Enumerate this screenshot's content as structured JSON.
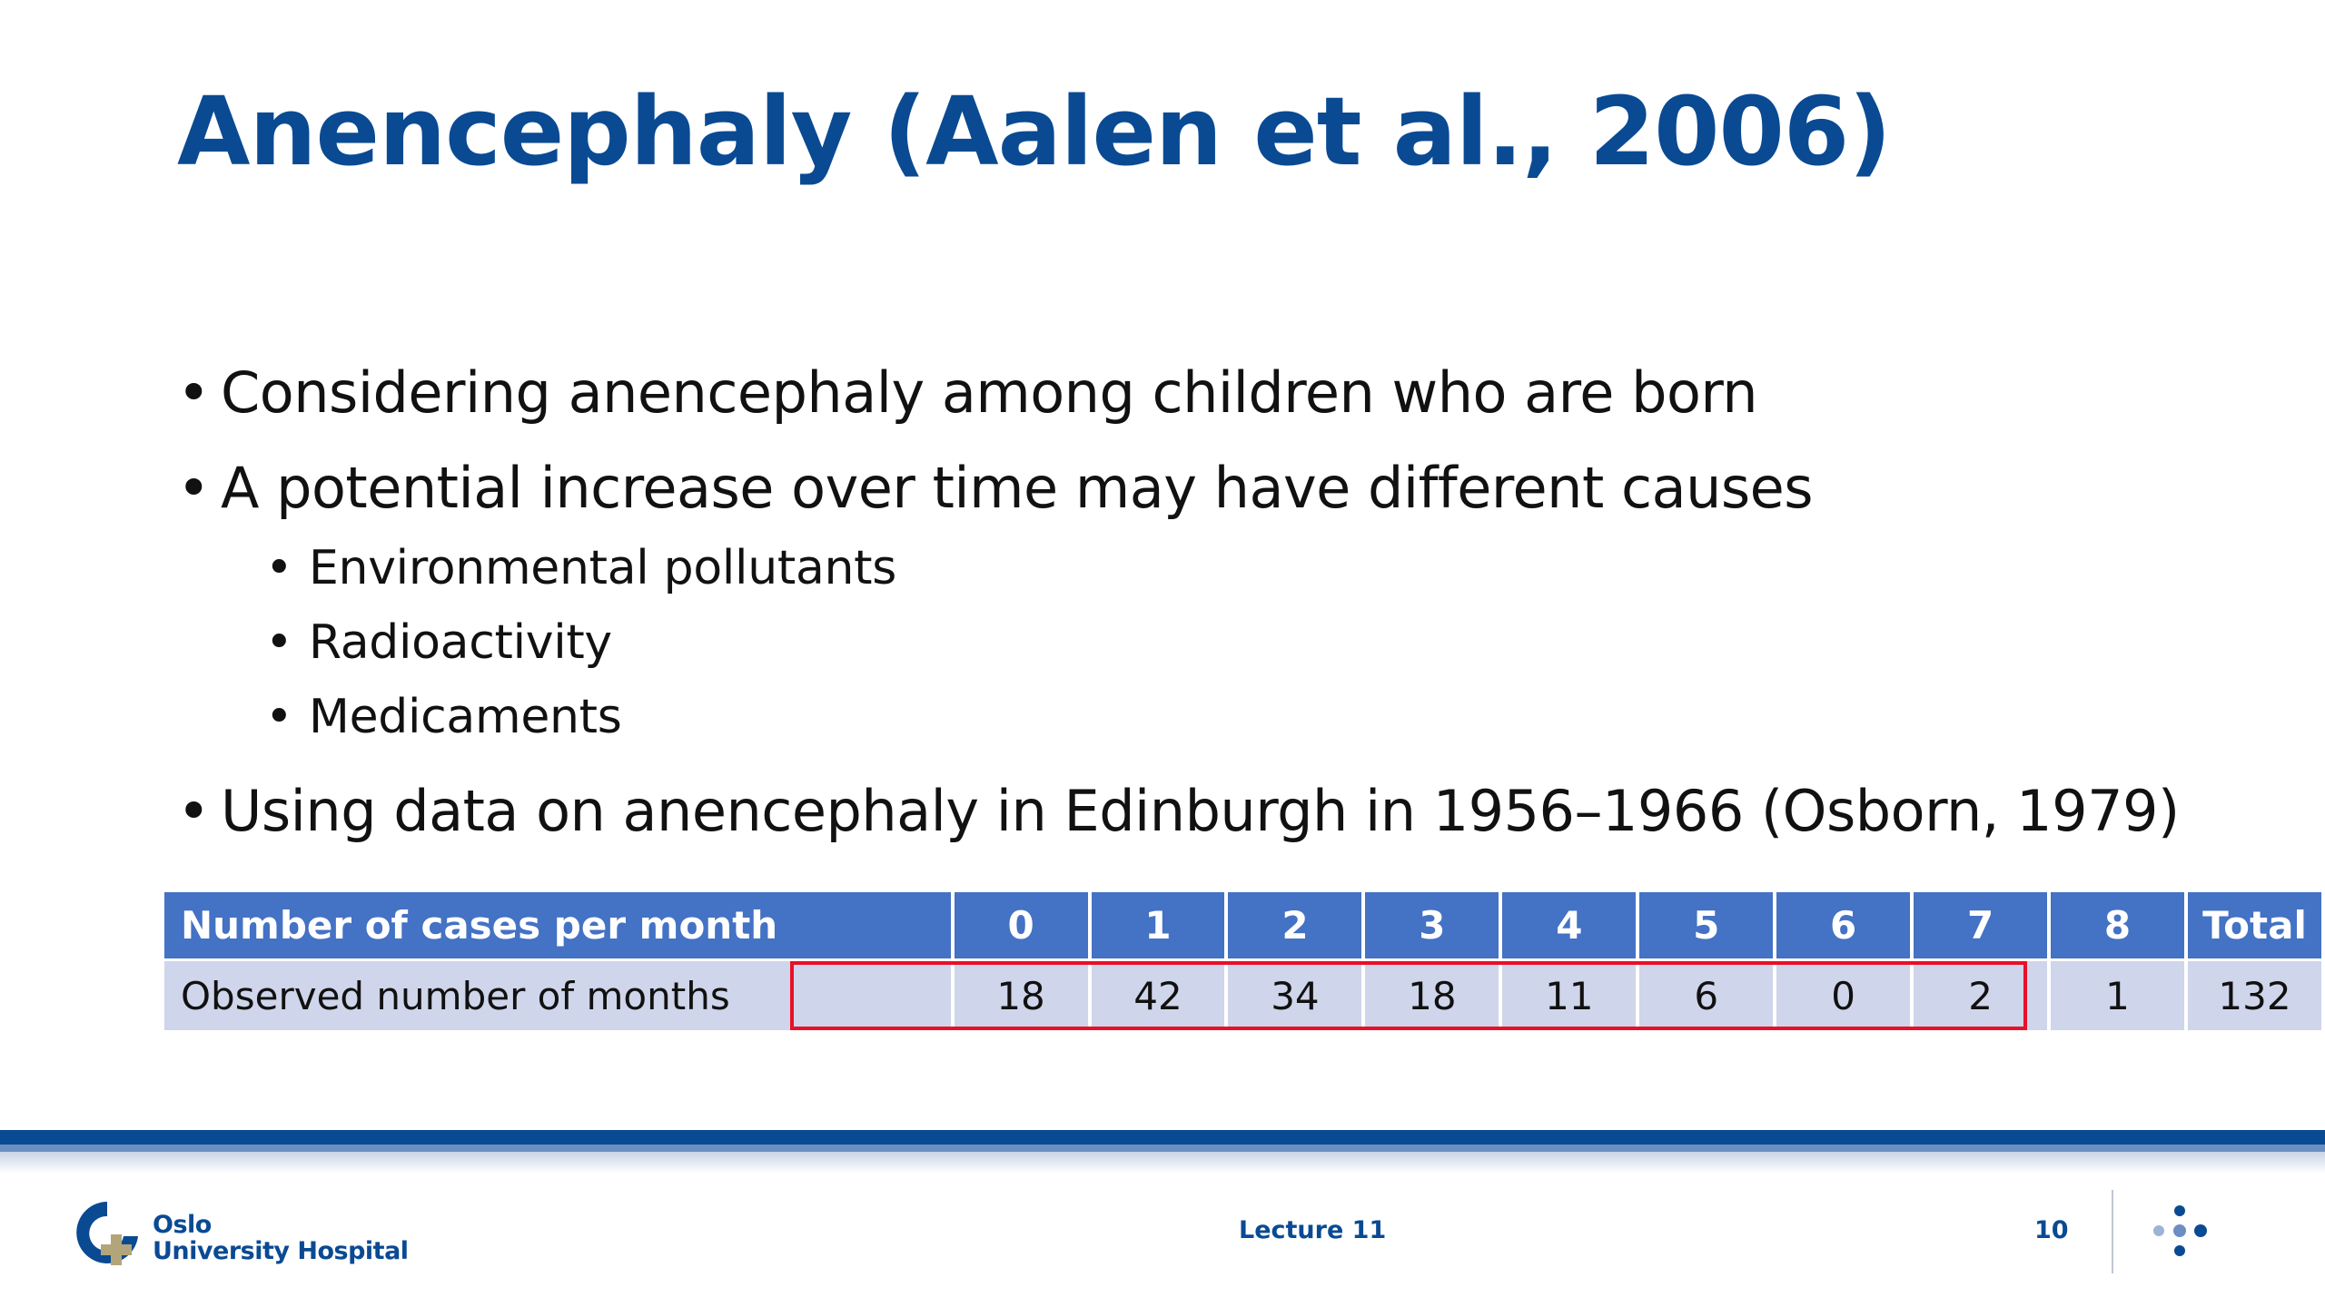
{
  "slide": {
    "title": "Anencephaly (Aalen et al., 2006)"
  },
  "bullets": {
    "b1": "Considering anencephaly among children who are born",
    "b2": "A potential increase over time may have different causes",
    "sub1": "Environmental pollutants",
    "sub2": "Radioactivity",
    "sub3": "Medicaments",
    "b3": "Using data on anencephaly in Edinburgh in 1956–1966 (Osborn, 1979)",
    "marker": "•"
  },
  "table": {
    "header_label": "Number of cases per month",
    "row_label": "Observed number of months",
    "headers": [
      "0",
      "1",
      "2",
      "3",
      "4",
      "5",
      "6",
      "7",
      "8"
    ],
    "values": [
      "18",
      "42",
      "34",
      "18",
      "11",
      "6",
      "0",
      "2",
      "1"
    ],
    "total_header": "Total",
    "total_value": "132",
    "header_color": "#4472c4",
    "row_color": "#cfd5ea",
    "highlight_color": "#e8102a"
  },
  "footer": {
    "logo_line1": "Oslo",
    "logo_line2": "University Hospital",
    "center_text": "Lecture 11",
    "page_number": "10",
    "brand_color": "#0a4a93",
    "logo_icon": "oslo-university-hospital-logo-icon",
    "dots_icon": "dots-cross-icon"
  }
}
